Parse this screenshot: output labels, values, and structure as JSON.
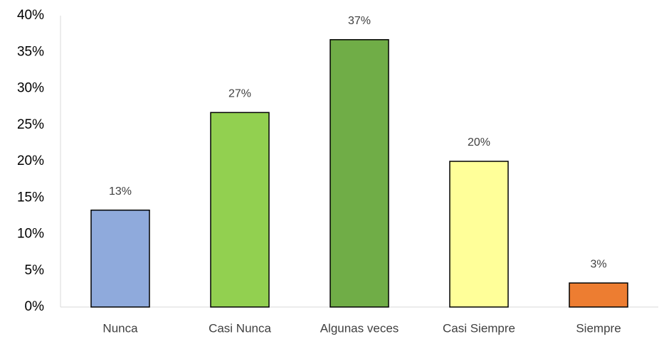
{
  "chart_data": {
    "type": "bar",
    "categories": [
      "Nunca",
      "Casi Nunca",
      "Algunas veces",
      "Casi Siempre",
      "Siempre"
    ],
    "values": [
      13.3,
      26.7,
      36.7,
      20,
      3.3
    ],
    "value_labels": [
      "13%",
      "27%",
      "37%",
      "20%",
      "3%"
    ],
    "colors": [
      "#8faadc",
      "#92d050",
      "#70ad47",
      "#ffff99",
      "#ed7d31"
    ],
    "ylim": [
      0,
      40
    ],
    "yticks": [
      {
        "value": 0,
        "label": "0%"
      },
      {
        "value": 5,
        "label": "5%"
      },
      {
        "value": 10,
        "label": "10%"
      },
      {
        "value": 15,
        "label": "15%"
      },
      {
        "value": 20,
        "label": "20%"
      },
      {
        "value": 25,
        "label": "25%"
      },
      {
        "value": 30,
        "label": "30%"
      },
      {
        "value": 35,
        "label": "35%"
      },
      {
        "value": 40,
        "label": "40%"
      }
    ],
    "grid": false
  }
}
